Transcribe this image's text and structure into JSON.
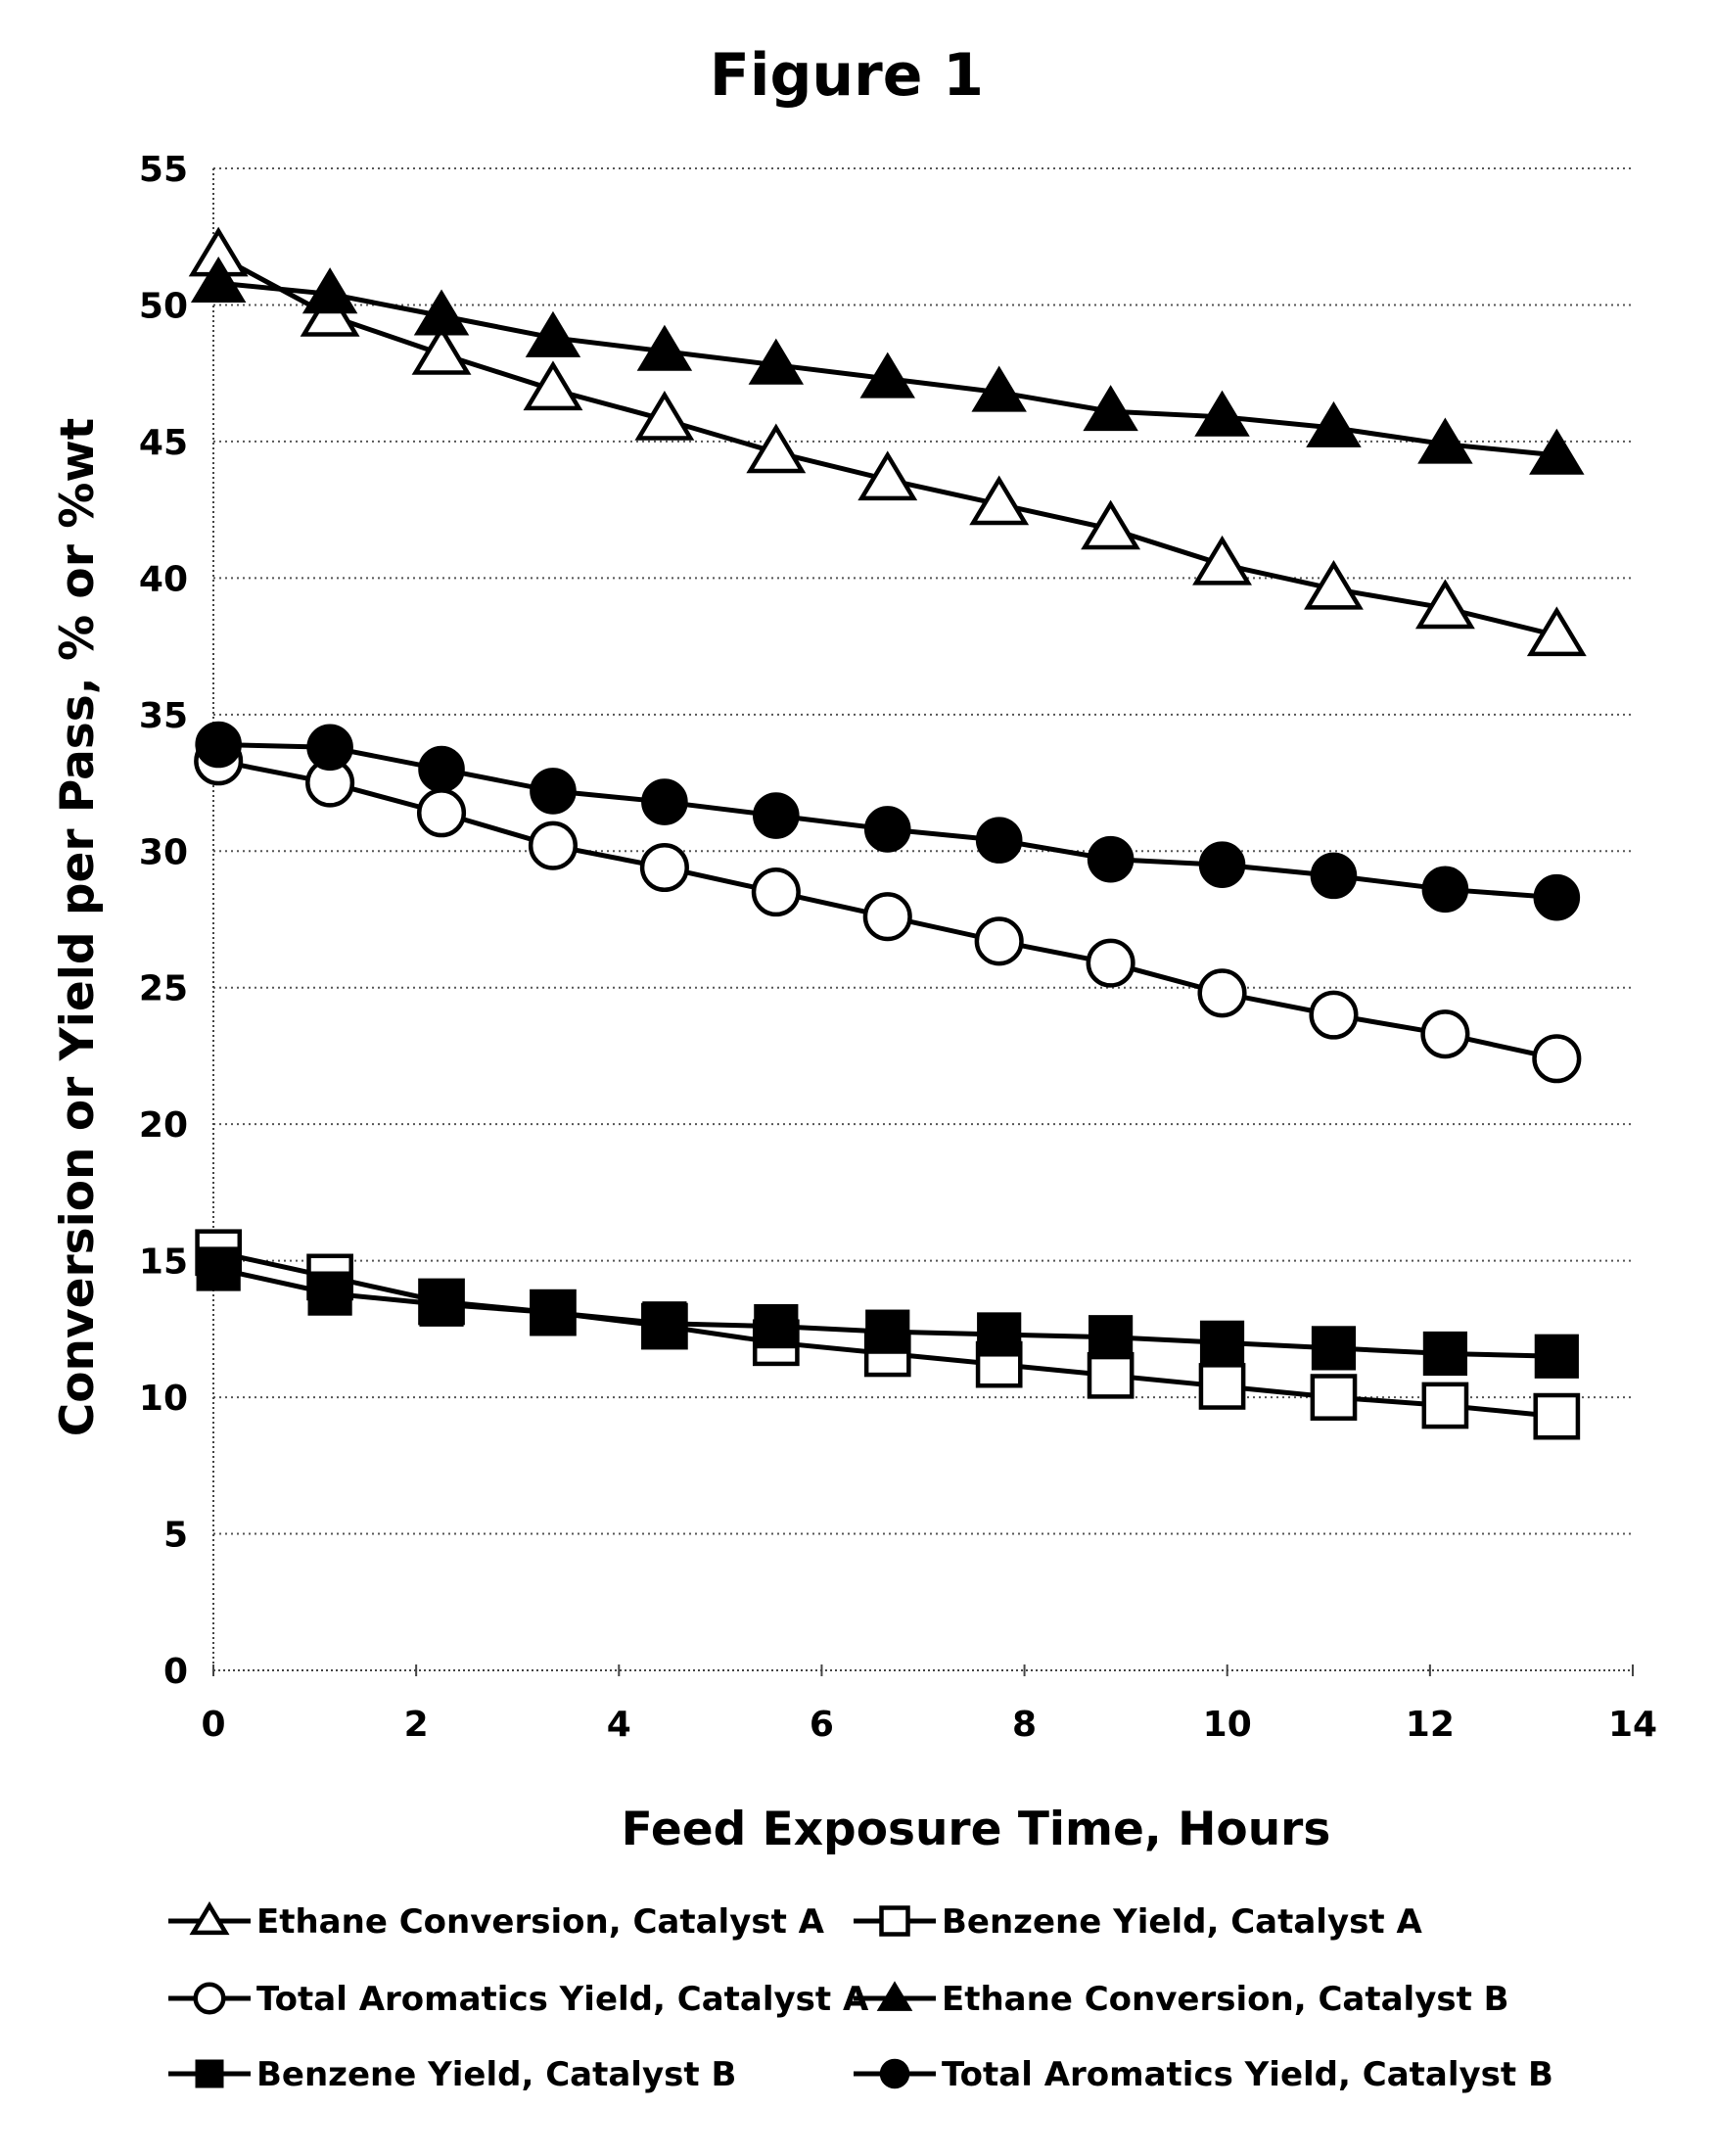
{
  "chart_data": {
    "type": "line",
    "title": "Figure 1",
    "xlabel": "Feed Exposure Time, Hours",
    "ylabel": "Conversion or Yield per Pass, % or %wt",
    "xlim": [
      0,
      14
    ],
    "ylim": [
      0,
      55
    ],
    "xticks": [
      "0",
      "2",
      "4",
      "6",
      "8",
      "10",
      "12",
      "14"
    ],
    "yticks": [
      "0",
      "5",
      "10",
      "15",
      "20",
      "25",
      "30",
      "35",
      "40",
      "45",
      "50",
      "55"
    ],
    "grid": "horizontal dotted",
    "legend_position": "bottom",
    "x": [
      0.05,
      1.15,
      2.25,
      3.35,
      4.45,
      5.55,
      6.65,
      7.75,
      8.85,
      9.95,
      11.05,
      12.15,
      13.25
    ],
    "series": [
      {
        "name": "Ethane Conversion, Catalyst A",
        "marker": "triangle-open",
        "values": [
          51.8,
          49.6,
          48.2,
          46.9,
          45.8,
          44.6,
          43.6,
          42.7,
          41.8,
          40.5,
          39.6,
          38.9,
          37.9
        ]
      },
      {
        "name": "Benzene Yield, Catalyst A",
        "marker": "square-open",
        "values": [
          15.3,
          14.4,
          13.5,
          13.1,
          12.6,
          12.0,
          11.6,
          11.2,
          10.8,
          10.4,
          10.0,
          9.7,
          9.3
        ]
      },
      {
        "name": "Total Aromatics Yield, Catalyst A",
        "marker": "circle-open",
        "values": [
          33.3,
          32.5,
          31.4,
          30.2,
          29.4,
          28.5,
          27.6,
          26.7,
          25.9,
          24.8,
          24.0,
          23.3,
          22.4
        ]
      },
      {
        "name": "Ethane Conversion, Catalyst B",
        "marker": "triangle-filled",
        "values": [
          50.8,
          50.4,
          49.6,
          48.8,
          48.3,
          47.8,
          47.3,
          46.8,
          46.1,
          45.9,
          45.5,
          44.9,
          44.5
        ]
      },
      {
        "name": "Benzene Yield, Catalyst B",
        "marker": "square-filled",
        "values": [
          14.7,
          13.8,
          13.4,
          13.1,
          12.7,
          12.6,
          12.4,
          12.3,
          12.2,
          12.0,
          11.8,
          11.6,
          11.5
        ]
      },
      {
        "name": "Total Aromatics Yield, Catalyst B",
        "marker": "circle-filled",
        "values": [
          33.9,
          33.8,
          33.0,
          32.2,
          31.8,
          31.3,
          30.8,
          30.4,
          29.7,
          29.5,
          29.1,
          28.6,
          28.3
        ]
      }
    ]
  }
}
